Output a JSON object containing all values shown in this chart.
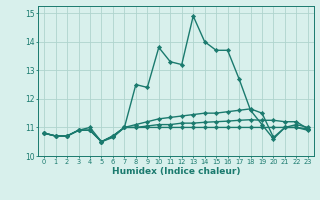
{
  "line1": [
    10.8,
    10.7,
    10.7,
    10.9,
    10.9,
    10.5,
    10.7,
    11.0,
    12.5,
    12.4,
    13.8,
    13.3,
    13.2,
    14.9,
    14.0,
    13.7,
    13.7,
    12.7,
    11.6,
    11.1,
    10.6,
    11.0,
    11.0,
    10.9
  ],
  "line2": [
    10.8,
    10.7,
    10.7,
    10.9,
    10.9,
    10.5,
    10.7,
    11.0,
    11.1,
    11.2,
    11.3,
    11.35,
    11.4,
    11.45,
    11.5,
    11.5,
    11.55,
    11.6,
    11.65,
    11.5,
    10.65,
    11.0,
    11.1,
    11.0
  ],
  "line3": [
    10.8,
    10.7,
    10.7,
    10.9,
    10.9,
    10.5,
    10.7,
    11.0,
    11.0,
    11.05,
    11.1,
    11.1,
    11.15,
    11.15,
    11.18,
    11.2,
    11.22,
    11.25,
    11.27,
    11.25,
    11.25,
    11.2,
    11.2,
    10.95
  ],
  "line4": [
    10.8,
    10.7,
    10.7,
    10.9,
    11.0,
    10.5,
    10.65,
    11.0,
    11.0,
    11.0,
    11.0,
    11.0,
    11.0,
    11.0,
    11.0,
    11.0,
    11.0,
    11.0,
    11.0,
    11.0,
    11.0,
    11.0,
    11.0,
    10.95
  ],
  "color": "#1a7a6e",
  "bg_color": "#d8f0ec",
  "grid_color": "#afd4ce",
  "xlabel": "Humidex (Indice chaleur)",
  "ylim": [
    10.0,
    15.25
  ],
  "xlim": [
    -0.5,
    23.5
  ],
  "yticks": [
    10,
    11,
    12,
    13,
    14,
    15
  ],
  "xticks": [
    0,
    1,
    2,
    3,
    4,
    5,
    6,
    7,
    8,
    9,
    10,
    11,
    12,
    13,
    14,
    15,
    16,
    17,
    18,
    19,
    20,
    21,
    22,
    23
  ],
  "marker": "D",
  "markersize": 2.2,
  "linewidth": 1.0
}
